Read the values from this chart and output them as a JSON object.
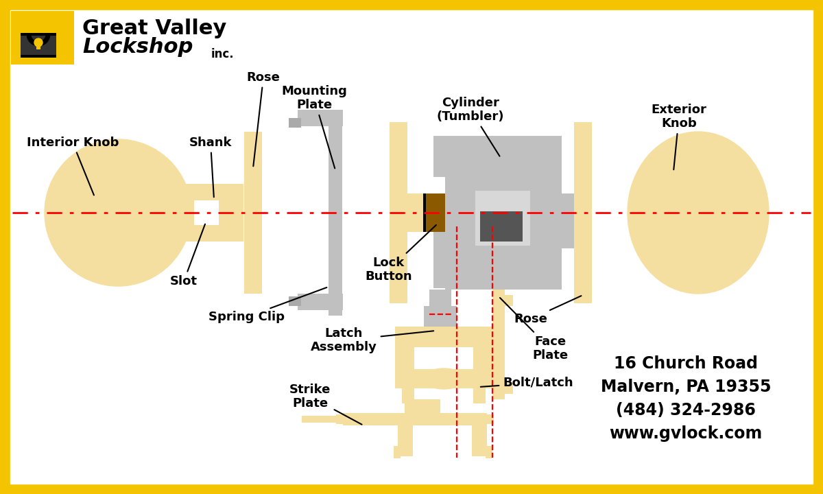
{
  "bg_color": "#ffffff",
  "border_color": "#F5C400",
  "border_lw": 12,
  "yellow": "#F5DFA0",
  "yellow_dark": "#E8C840",
  "gray_light": "#C0C0C0",
  "gray_med": "#AAAAAA",
  "gray_dark": "#555555",
  "gray_xlight": "#D8D8D8",
  "brown": "#8B5A00",
  "red": "#FF0000",
  "white": "#ffffff",
  "black": "#000000",
  "address1": "16 Church Road",
  "address2": "Malvern, PA 19355",
  "address3": "(484) 324-2986",
  "address4": "www.gvlock.com"
}
